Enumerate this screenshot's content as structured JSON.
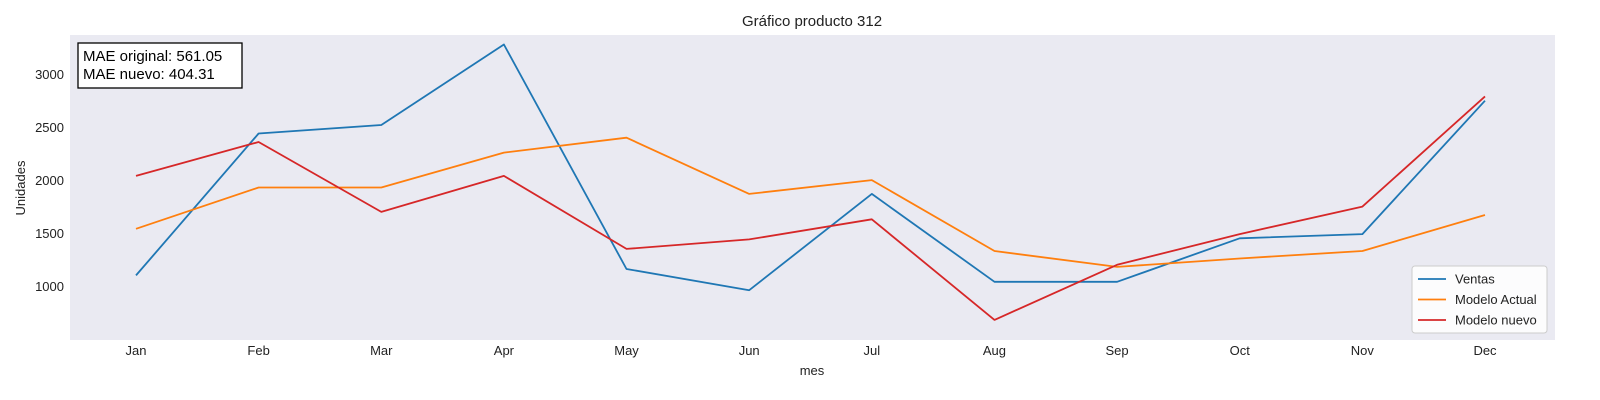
{
  "chart_data": {
    "type": "line",
    "title": "Gráfico producto 312",
    "xlabel": "mes",
    "ylabel": "Unidades",
    "categories": [
      "Jan",
      "Feb",
      "Mar",
      "Apr",
      "May",
      "Jun",
      "Jul",
      "Aug",
      "Sep",
      "Oct",
      "Nov",
      "Dec"
    ],
    "yticks": [
      1000,
      1500,
      2000,
      2500,
      3000
    ],
    "ylim": [
      500,
      3380
    ],
    "grid": false,
    "legend_position": "bottom-right",
    "annotation": [
      "MAE original: 561.05",
      "MAE nuevo: 404.31"
    ],
    "series": [
      {
        "name": "Ventas",
        "color": "#1f77b4",
        "values": [
          1110,
          2450,
          2530,
          3290,
          1170,
          970,
          1880,
          1050,
          1050,
          1460,
          1500,
          2760
        ]
      },
      {
        "name": "Modelo Actual",
        "color": "#ff7f0e",
        "values": [
          1550,
          1940,
          1940,
          2270,
          2410,
          1880,
          2010,
          1340,
          1190,
          1270,
          1340,
          1680
        ]
      },
      {
        "name": "Modelo nuevo",
        "color": "#d62728",
        "values": [
          2050,
          2370,
          1710,
          2050,
          1360,
          1450,
          1640,
          690,
          1210,
          1500,
          1760,
          2800
        ]
      }
    ],
    "background_color": "#eaeaf2"
  }
}
